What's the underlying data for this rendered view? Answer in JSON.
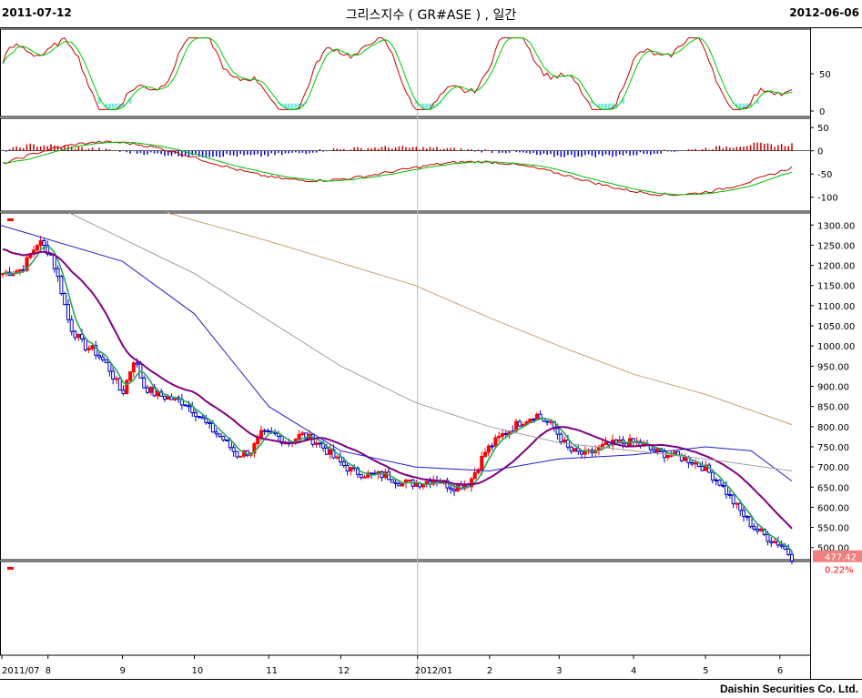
{
  "header": {
    "start_date": "2011-07-12",
    "title": "그리스지수 ( GR#ASE ) , 일간",
    "end_date": "2012-06-06"
  },
  "footer": {
    "company": "Daishin Securities Co. Ltd."
  },
  "colors": {
    "up": "#ff0000",
    "down": "#0000cc",
    "ma_short": "#2aa55a",
    "ma_mid": "#800080",
    "ma_long1": "#1e1ed2",
    "ma_long2": "#a0a0a0",
    "ma_long3": "#c8a078",
    "signal_fill": "#40e0d0",
    "price_tag": "#f08080"
  },
  "price_axis": {
    "ticks": [
      "1300.00",
      "1250.00",
      "1200.00",
      "1150.00",
      "1100.00",
      "1050.00",
      "1000.00",
      "950.00",
      "900.00",
      "850.00",
      "800.00",
      "750.00",
      "700.00",
      "650.00",
      "600.00",
      "550.00",
      "500.00"
    ],
    "values": [
      1300,
      1250,
      1200,
      1150,
      1100,
      1050,
      1000,
      950,
      900,
      850,
      800,
      750,
      700,
      650,
      600,
      550,
      500
    ]
  },
  "stoch_axis": {
    "ticks": [
      "50",
      "0"
    ],
    "values": [
      50,
      0
    ]
  },
  "macd_axis": {
    "ticks": [
      "50",
      "0",
      "-50",
      "-100"
    ],
    "values": [
      50,
      0,
      -50,
      -100
    ]
  },
  "x_axis": {
    "labels": [
      "2011/07",
      "8",
      "9",
      "10",
      "11",
      "12",
      "2012/01",
      "2",
      "3",
      "4",
      "5",
      "6"
    ]
  },
  "last_price": "477.42",
  "last_change": "0.22%",
  "chart_data": {
    "type": "candlestick",
    "title": "그리스지수 ( GR#ASE ) , 일간",
    "x_range": [
      "2011-07-12",
      "2012-06-06"
    ],
    "y_range": [
      470,
      1330
    ],
    "price_path": [
      [
        "2011-07-12",
        1180
      ],
      [
        "2011-07-20",
        1190
      ],
      [
        "2011-07-27",
        1260
      ],
      [
        "2011-08-01",
        1230
      ],
      [
        "2011-08-05",
        1150
      ],
      [
        "2011-08-09",
        1050
      ],
      [
        "2011-08-15",
        1000
      ],
      [
        "2011-08-19",
        990
      ],
      [
        "2011-08-25",
        950
      ],
      [
        "2011-08-31",
        880
      ],
      [
        "2011-09-05",
        970
      ],
      [
        "2011-09-09",
        900
      ],
      [
        "2011-09-14",
        880
      ],
      [
        "2011-09-20",
        870
      ],
      [
        "2011-09-26",
        860
      ],
      [
        "2011-09-30",
        840
      ],
      [
        "2011-10-06",
        800
      ],
      [
        "2011-10-12",
        770
      ],
      [
        "2011-10-18",
        730
      ],
      [
        "2011-10-24",
        740
      ],
      [
        "2011-10-28",
        780
      ],
      [
        "2011-11-03",
        780
      ],
      [
        "2011-11-08",
        760
      ],
      [
        "2011-11-14",
        780
      ],
      [
        "2011-11-21",
        760
      ],
      [
        "2011-11-28",
        720
      ],
      [
        "2011-12-05",
        690
      ],
      [
        "2011-12-12",
        680
      ],
      [
        "2011-12-19",
        680
      ],
      [
        "2011-12-26",
        660
      ],
      [
        "2012-01-02",
        660
      ],
      [
        "2012-01-09",
        670
      ],
      [
        "2012-01-16",
        650
      ],
      [
        "2012-01-23",
        660
      ],
      [
        "2012-01-30",
        740
      ],
      [
        "2012-02-06",
        780
      ],
      [
        "2012-02-13",
        810
      ],
      [
        "2012-02-20",
        830
      ],
      [
        "2012-02-27",
        800
      ],
      [
        "2012-03-05",
        740
      ],
      [
        "2012-03-12",
        730
      ],
      [
        "2012-03-19",
        750
      ],
      [
        "2012-03-26",
        760
      ],
      [
        "2012-04-02",
        760
      ],
      [
        "2012-04-09",
        740
      ],
      [
        "2012-04-16",
        730
      ],
      [
        "2012-04-23",
        720
      ],
      [
        "2012-04-30",
        700
      ],
      [
        "2012-05-07",
        660
      ],
      [
        "2012-05-14",
        600
      ],
      [
        "2012-05-21",
        550
      ],
      [
        "2012-05-28",
        520
      ],
      [
        "2012-06-01",
        510
      ],
      [
        "2012-06-06",
        477
      ]
    ],
    "ma_long1_path": [
      [
        "2011-07-12",
        1300
      ],
      [
        "2011-09-01",
        1210
      ],
      [
        "2011-10-01",
        1080
      ],
      [
        "2011-11-01",
        850
      ],
      [
        "2011-12-01",
        740
      ],
      [
        "2012-01-01",
        700
      ],
      [
        "2012-02-01",
        690
      ],
      [
        "2012-03-01",
        720
      ],
      [
        "2012-04-01",
        730
      ],
      [
        "2012-05-01",
        750
      ],
      [
        "2012-05-20",
        740
      ],
      [
        "2012-06-06",
        665
      ]
    ],
    "ma_long2_path": [
      [
        "2011-08-10",
        1330
      ],
      [
        "2011-10-01",
        1180
      ],
      [
        "2011-12-01",
        950
      ],
      [
        "2012-01-01",
        860
      ],
      [
        "2012-02-01",
        800
      ],
      [
        "2012-03-01",
        760
      ],
      [
        "2012-04-01",
        740
      ],
      [
        "2012-05-01",
        720
      ],
      [
        "2012-06-06",
        690
      ]
    ],
    "ma_long3_path": [
      [
        "2011-09-20",
        1330
      ],
      [
        "2011-11-01",
        1260
      ],
      [
        "2012-01-01",
        1150
      ],
      [
        "2012-02-01",
        1070
      ],
      [
        "2012-03-01",
        1000
      ],
      [
        "2012-04-01",
        930
      ],
      [
        "2012-05-01",
        880
      ],
      [
        "2012-06-06",
        805
      ]
    ],
    "last_price": 477.42,
    "change_pct": 0.22
  }
}
